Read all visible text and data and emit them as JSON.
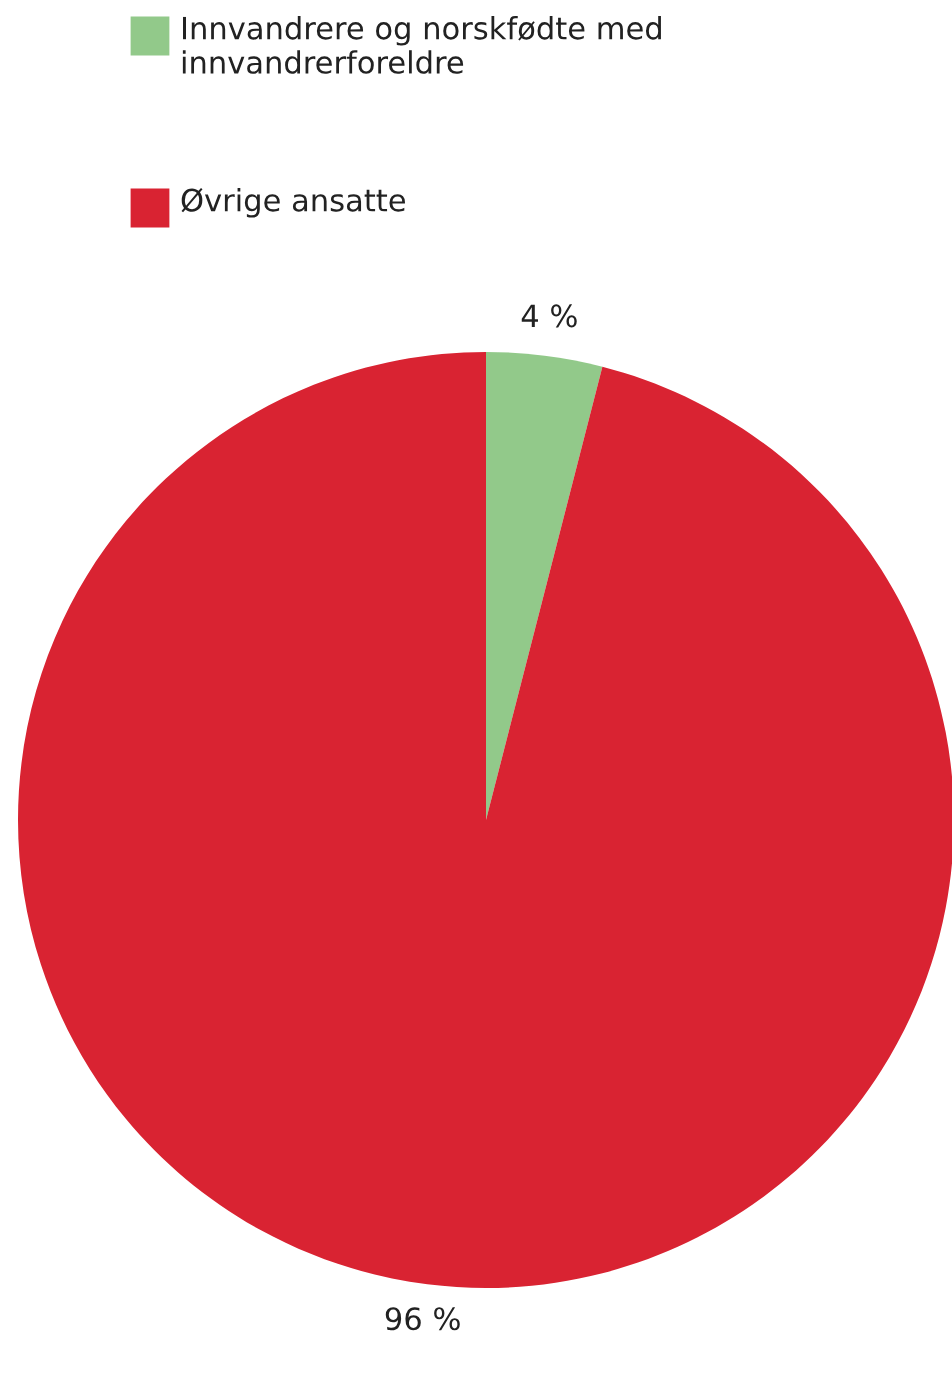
{
  "chart_data": {
    "type": "pie",
    "categories": [
      "Innvandrere og norskfødte med innvandrerforeldre",
      "Øvrige ansatte"
    ],
    "values": [
      4,
      96
    ],
    "colors": [
      "#92c98a",
      "#d92332"
    ],
    "value_labels": [
      "4 %",
      "96 %"
    ],
    "legend": "top left"
  }
}
